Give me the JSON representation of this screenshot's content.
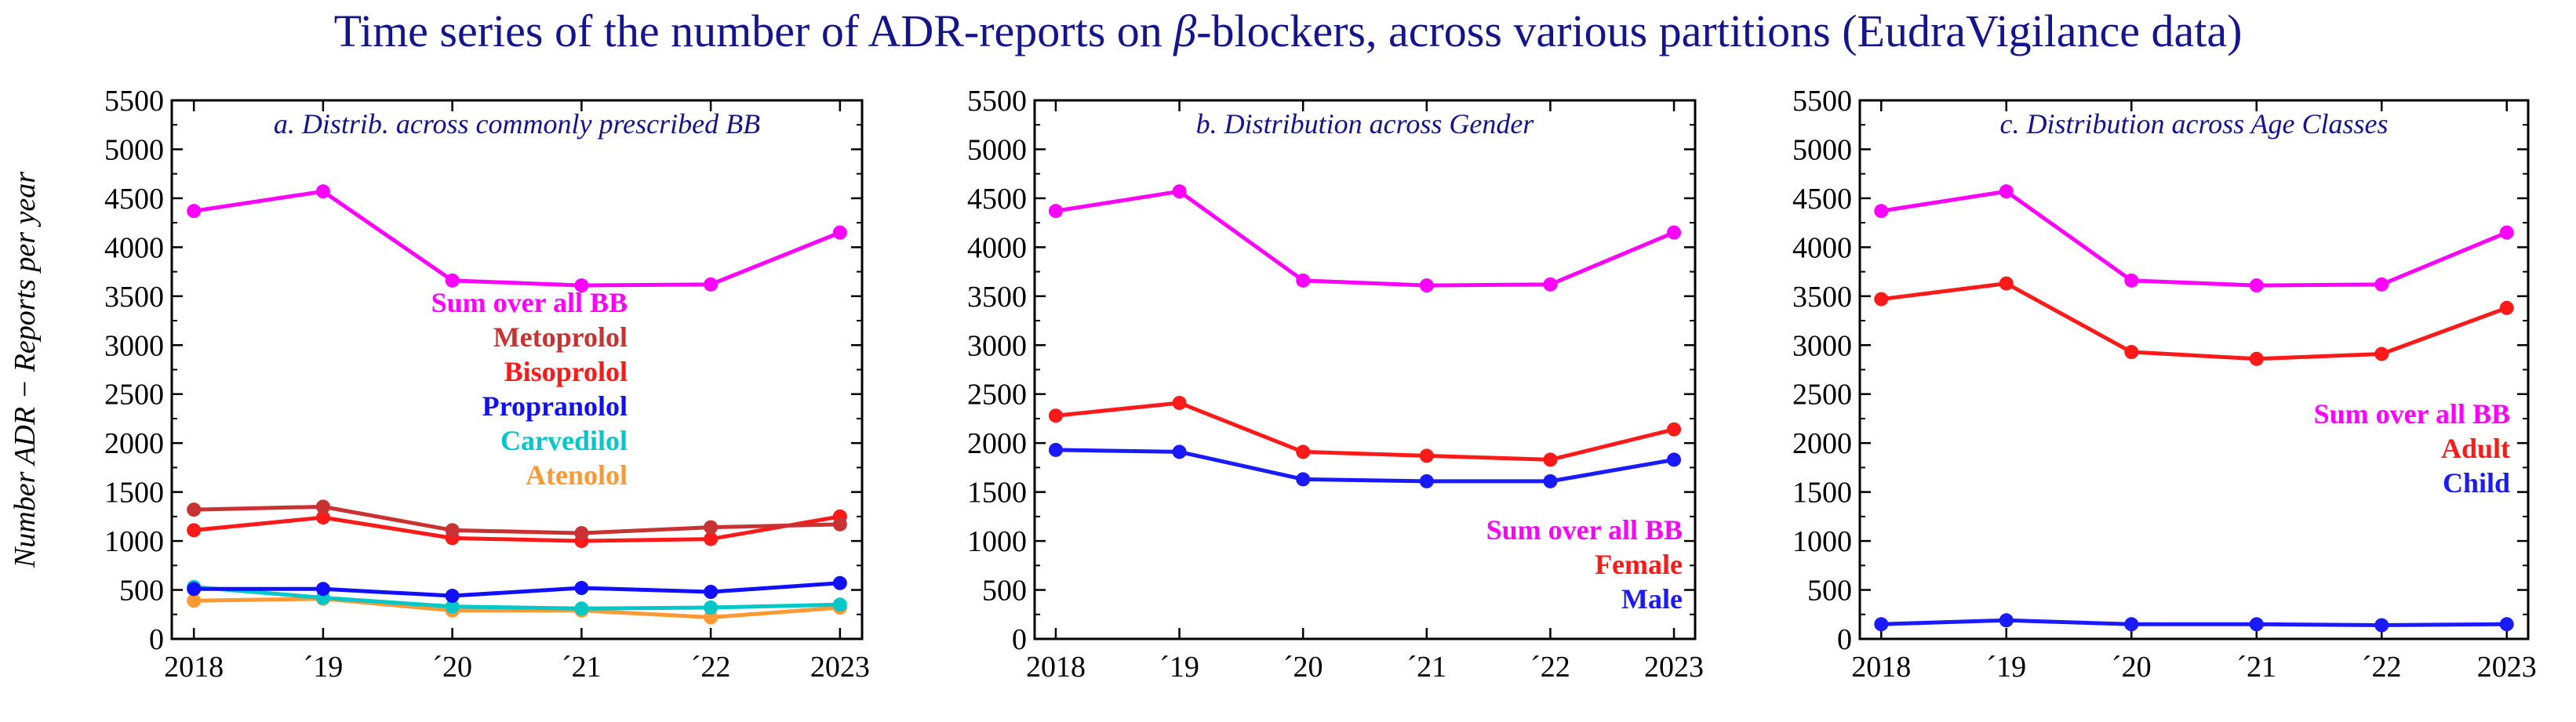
{
  "figure": {
    "title_prefix": "Time series of the number of ADR-reports on ",
    "title_greek": "β",
    "title_suffix": "-blockers, across various partitions (EudraVigilance data)",
    "ylabel": "Number  ADR − Reports  per  year"
  },
  "chart_data": [
    {
      "type": "line",
      "title": "a. Distrib.  across  commonly  prescribed  BB",
      "xlabel": "",
      "ylabel": "Number  ADR − Reports  per  year",
      "categories": [
        "2018",
        "´19",
        "´20",
        "´21",
        "´22",
        "2023"
      ],
      "x": [
        2018,
        2019,
        2020,
        2021,
        2022,
        2023
      ],
      "ylim": [
        0,
        5500
      ],
      "yticks": [
        0,
        500,
        1000,
        1500,
        2000,
        2500,
        3000,
        3500,
        4000,
        4500,
        5000,
        5500
      ],
      "legend_position": "center-left",
      "series": [
        {
          "name": "Sum  over  all  BB",
          "color": "#ff00ff",
          "values": [
            4370,
            4570,
            3660,
            3610,
            3620,
            4150
          ]
        },
        {
          "name": "Metoprolol",
          "color": "#c83232",
          "values": [
            1320,
            1350,
            1110,
            1080,
            1140,
            1170
          ]
        },
        {
          "name": "Bisoprolol",
          "color": "#ff1a1a",
          "values": [
            1110,
            1240,
            1030,
            1000,
            1020,
            1250
          ]
        },
        {
          "name": "Propranolol",
          "color": "#1010ff",
          "values": [
            510,
            510,
            440,
            520,
            480,
            570
          ]
        },
        {
          "name": "Carvedilol",
          "color": "#00c8c8",
          "values": [
            530,
            420,
            330,
            310,
            320,
            350
          ]
        },
        {
          "name": "Atenolol",
          "color": "#ff9933",
          "values": [
            390,
            410,
            290,
            290,
            220,
            320
          ]
        }
      ]
    },
    {
      "type": "line",
      "title": "b. Distribution  across  Gender",
      "xlabel": "",
      "ylabel": "",
      "categories": [
        "2018",
        "´19",
        "´20",
        "´21",
        "´22",
        "2023"
      ],
      "x": [
        2018,
        2019,
        2020,
        2021,
        2022,
        2023
      ],
      "ylim": [
        0,
        5500
      ],
      "yticks": [
        0,
        500,
        1000,
        1500,
        2000,
        2500,
        3000,
        3500,
        4000,
        4500,
        5000,
        5500
      ],
      "legend_position": "bottom-right",
      "series": [
        {
          "name": "Sum  over  all  BB",
          "color": "#ff00ff",
          "values": [
            4370,
            4570,
            3660,
            3610,
            3620,
            4150
          ]
        },
        {
          "name": "Female",
          "color": "#ff1a1a",
          "values": [
            2280,
            2410,
            1910,
            1870,
            1830,
            2140
          ]
        },
        {
          "name": "Male",
          "color": "#1a1aff",
          "values": [
            1930,
            1910,
            1630,
            1610,
            1610,
            1830
          ]
        }
      ]
    },
    {
      "type": "line",
      "title": "c. Distribution  across  Age  Classes",
      "xlabel": "",
      "ylabel": "",
      "categories": [
        "2018",
        "´19",
        "´20",
        "´21",
        "´22",
        "2023"
      ],
      "x": [
        2018,
        2019,
        2020,
        2021,
        2022,
        2023
      ],
      "ylim": [
        0,
        5500
      ],
      "yticks": [
        0,
        500,
        1000,
        1500,
        2000,
        2500,
        3000,
        3500,
        4000,
        4500,
        5000,
        5500
      ],
      "legend_position": "center-right",
      "series": [
        {
          "name": "Sum  over  all  BB",
          "color": "#ff00ff",
          "values": [
            4370,
            4570,
            3660,
            3610,
            3620,
            4150
          ]
        },
        {
          "name": "Adult",
          "color": "#ff1a1a",
          "values": [
            3470,
            3630,
            2930,
            2860,
            2910,
            3380
          ]
        },
        {
          "name": "Child",
          "color": "#1a1aff",
          "values": [
            150,
            190,
            150,
            150,
            140,
            150
          ]
        }
      ]
    }
  ]
}
